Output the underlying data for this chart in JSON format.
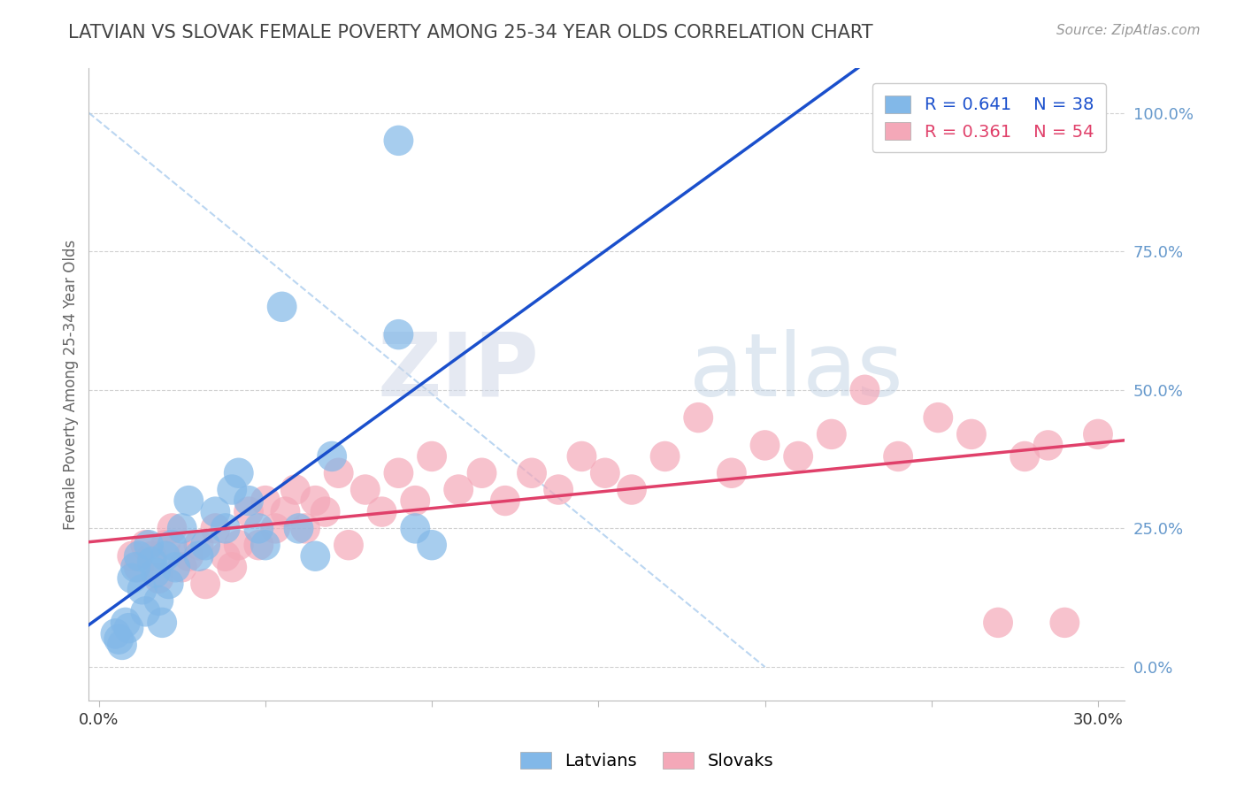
{
  "title": "LATVIAN VS SLOVAK FEMALE POVERTY AMONG 25-34 YEAR OLDS CORRELATION CHART",
  "source_text": "Source: ZipAtlas.com",
  "ylabel": "Female Poverty Among 25-34 Year Olds",
  "xlim": [
    -0.003,
    0.308
  ],
  "ylim": [
    -0.06,
    1.08
  ],
  "xticks": [
    0.0,
    0.05,
    0.1,
    0.15,
    0.2,
    0.25,
    0.3
  ],
  "yticks_right": [
    0.0,
    0.25,
    0.5,
    0.75,
    1.0
  ],
  "ytick_labels_right": [
    "0.0%",
    "25.0%",
    "50.0%",
    "75.0%",
    "100.0%"
  ],
  "latvian_color": "#82b8e8",
  "slovak_color": "#f4a8b8",
  "latvian_line_color": "#1a4fcc",
  "slovak_line_color": "#e0406a",
  "ref_line_color": "#aaccee",
  "legend_R_latvian": "R = 0.641",
  "legend_N_latvian": "N = 38",
  "legend_R_slovak": "R = 0.361",
  "legend_N_slovak": "N = 54",
  "legend_text_latvian_color": "#1a4fcc",
  "legend_text_slovak_color": "#e0406a",
  "watermark_zip": "ZIP",
  "watermark_atlas": "atlas",
  "watermark_zip_color": "#d0d8e8",
  "watermark_atlas_color": "#b8cce0",
  "bg_color": "#ffffff",
  "grid_color": "#cccccc",
  "title_color": "#444444",
  "axis_label_color": "#6699cc",
  "right_tick_color": "#6699cc",
  "latvian_x": [
    0.005,
    0.006,
    0.007,
    0.008,
    0.009,
    0.01,
    0.011,
    0.012,
    0.013,
    0.014,
    0.015,
    0.016,
    0.017,
    0.018,
    0.019,
    0.02,
    0.021,
    0.022,
    0.023,
    0.025,
    0.027,
    0.03,
    0.032,
    0.035,
    0.038,
    0.04,
    0.042,
    0.045,
    0.048,
    0.05,
    0.055,
    0.06,
    0.065,
    0.07,
    0.09,
    0.09,
    0.095,
    0.1
  ],
  "latvian_y": [
    0.06,
    0.05,
    0.04,
    0.08,
    0.07,
    0.16,
    0.18,
    0.2,
    0.14,
    0.1,
    0.22,
    0.19,
    0.17,
    0.12,
    0.08,
    0.2,
    0.15,
    0.22,
    0.18,
    0.25,
    0.3,
    0.2,
    0.22,
    0.28,
    0.25,
    0.32,
    0.35,
    0.3,
    0.25,
    0.22,
    0.65,
    0.25,
    0.2,
    0.38,
    0.95,
    0.6,
    0.25,
    0.22
  ],
  "slovak_x": [
    0.01,
    0.012,
    0.014,
    0.016,
    0.018,
    0.02,
    0.022,
    0.025,
    0.027,
    0.03,
    0.032,
    0.035,
    0.038,
    0.04,
    0.042,
    0.045,
    0.048,
    0.05,
    0.053,
    0.056,
    0.059,
    0.062,
    0.065,
    0.068,
    0.072,
    0.075,
    0.08,
    0.085,
    0.09,
    0.095,
    0.1,
    0.108,
    0.115,
    0.122,
    0.13,
    0.138,
    0.145,
    0.152,
    0.16,
    0.17,
    0.18,
    0.19,
    0.2,
    0.21,
    0.22,
    0.23,
    0.24,
    0.252,
    0.262,
    0.27,
    0.278,
    0.285,
    0.29,
    0.3
  ],
  "slovak_y": [
    0.2,
    0.18,
    0.22,
    0.2,
    0.16,
    0.22,
    0.25,
    0.18,
    0.2,
    0.22,
    0.15,
    0.25,
    0.2,
    0.18,
    0.22,
    0.28,
    0.22,
    0.3,
    0.25,
    0.28,
    0.32,
    0.25,
    0.3,
    0.28,
    0.35,
    0.22,
    0.32,
    0.28,
    0.35,
    0.3,
    0.38,
    0.32,
    0.35,
    0.3,
    0.35,
    0.32,
    0.38,
    0.35,
    0.32,
    0.38,
    0.45,
    0.35,
    0.4,
    0.38,
    0.42,
    0.5,
    0.38,
    0.45,
    0.42,
    0.08,
    0.38,
    0.4,
    0.08,
    0.42
  ]
}
